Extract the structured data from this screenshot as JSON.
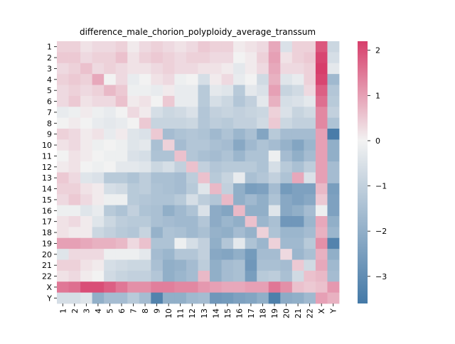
{
  "chart_data": {
    "type": "heatmap",
    "title": "difference_male_chorion_polyploidy_average_transsum",
    "xlabel": "",
    "ylabel": "",
    "row_labels": [
      "1",
      "2",
      "3",
      "4",
      "5",
      "6",
      "7",
      "8",
      "9",
      "10",
      "11",
      "12",
      "13",
      "14",
      "15",
      "16",
      "17",
      "18",
      "19",
      "20",
      "21",
      "22",
      "X",
      "Y"
    ],
    "col_labels": [
      "1",
      "2",
      "3",
      "4",
      "5",
      "6",
      "7",
      "8",
      "9",
      "10",
      "11",
      "12",
      "13",
      "14",
      "15",
      "16",
      "17",
      "18",
      "19",
      "20",
      "21",
      "22",
      "X",
      "Y"
    ],
    "colorbar": {
      "min": -3.6,
      "max": 2.2,
      "ticks": [
        -3,
        -2,
        -1,
        0,
        1,
        2
      ],
      "tick_labels": [
        "−3",
        "−2",
        "−1",
        "0",
        "1",
        "2"
      ],
      "low_color": "#4479a7",
      "mid_color": "#f2f2f2",
      "high_color": "#d73e6b"
    },
    "values": [
      [
        0.4,
        0.4,
        0.2,
        0.3,
        0.3,
        0.4,
        0.1,
        0.3,
        0.4,
        0.3,
        0.2,
        0.3,
        0.5,
        0.4,
        0.4,
        0.1,
        0.2,
        0.3,
        0.9,
        -0.5,
        0.4,
        0.4,
        1.9,
        -0.8
      ],
      [
        0.5,
        0.5,
        0.3,
        0.4,
        0.4,
        0.6,
        0.2,
        0.4,
        0.5,
        0.4,
        0.3,
        0.4,
        0.4,
        0.3,
        0.3,
        0.0,
        0.1,
        0.4,
        1.0,
        0.2,
        0.4,
        0.5,
        2.1,
        -0.6
      ],
      [
        0.3,
        0.4,
        0.6,
        0.3,
        0.4,
        0.3,
        0.2,
        0.2,
        0.3,
        0.4,
        0.3,
        0.3,
        0.2,
        0.2,
        0.1,
        -0.3,
        0.1,
        0.3,
        0.9,
        0.3,
        0.3,
        0.4,
        2.2,
        -0.3
      ],
      [
        0.4,
        0.5,
        0.4,
        0.9,
        0.0,
        0.3,
        -0.2,
        0.0,
        0.2,
        0.3,
        -0.1,
        0.0,
        -0.6,
        0.1,
        0.3,
        -0.2,
        0.0,
        -0.7,
        0.8,
        -0.4,
        -0.2,
        0.4,
        2.1,
        -1.7
      ],
      [
        0.3,
        0.4,
        0.3,
        0.4,
        0.7,
        0.5,
        -0.1,
        -0.1,
        -0.2,
        0.1,
        -0.2,
        -0.2,
        -1.2,
        -0.3,
        -0.4,
        -1.2,
        -0.3,
        -0.5,
        1.0,
        -0.9,
        -0.7,
        0.3,
        1.8,
        -1.3
      ],
      [
        0.3,
        0.5,
        0.2,
        0.3,
        0.3,
        0.6,
        0.1,
        0.2,
        0.0,
        0.5,
        -0.2,
        -0.2,
        -1.2,
        -0.6,
        -0.8,
        -1.3,
        -1.0,
        -0.3,
        0.8,
        -0.6,
        -0.5,
        -0.3,
        1.6,
        -1.2
      ],
      [
        -0.2,
        -0.1,
        0.1,
        -0.1,
        -0.2,
        0.0,
        0.3,
        0.1,
        -0.6,
        -0.8,
        -0.7,
        -0.5,
        -1.3,
        -1.0,
        -0.9,
        -1.0,
        -0.9,
        -0.8,
        0.4,
        -0.5,
        -0.9,
        -0.7,
        1.3,
        -1.0
      ],
      [
        0.0,
        0.1,
        0.0,
        -0.2,
        -0.3,
        -0.2,
        0.0,
        0.5,
        -0.9,
        -0.9,
        -0.9,
        -0.8,
        -1.3,
        -1.1,
        -1.2,
        -1.0,
        -1.0,
        -0.7,
        0.5,
        -0.8,
        -1.0,
        -1.0,
        1.3,
        -1.4
      ],
      [
        0.4,
        0.3,
        0.1,
        0.2,
        -0.2,
        0.1,
        -0.4,
        -0.5,
        0.5,
        -1.6,
        -1.4,
        -1.3,
        -1.4,
        -1.7,
        -1.4,
        -1.8,
        -1.5,
        -2.3,
        -1.2,
        -1.6,
        -1.6,
        -1.6,
        1.0,
        -3.5
      ],
      [
        0.2,
        0.3,
        0.1,
        -0.1,
        0.0,
        -0.1,
        -0.4,
        -0.3,
        -1.5,
        0.4,
        -1.6,
        -1.3,
        -1.3,
        -1.5,
        -1.6,
        -2.2,
        -1.7,
        -1.4,
        -1.6,
        -1.9,
        -2.3,
        -1.8,
        1.0,
        -2.0
      ],
      [
        0.0,
        0.2,
        0.1,
        0.0,
        -0.1,
        -0.1,
        -0.5,
        -0.6,
        -1.4,
        -1.4,
        0.6,
        -1.3,
        -1.5,
        -1.6,
        -1.4,
        -1.8,
        -1.4,
        -1.4,
        -0.1,
        -1.6,
        -2.0,
        -1.6,
        1.0,
        -2.0
      ],
      [
        0.1,
        0.2,
        0.0,
        -0.1,
        0.0,
        -0.3,
        -0.3,
        -0.4,
        -0.8,
        -0.6,
        -1.0,
        0.6,
        -1.0,
        -1.3,
        -1.2,
        -1.2,
        -1.2,
        -1.4,
        -0.6,
        -1.2,
        -1.5,
        -1.1,
        1.0,
        -1.6
      ],
      [
        0.5,
        0.3,
        -0.4,
        -0.5,
        -1.2,
        -1.2,
        -1.4,
        -1.1,
        -1.5,
        -1.5,
        -1.6,
        -1.1,
        0.6,
        -1.2,
        -0.9,
        -0.2,
        -1.5,
        -1.3,
        -1.0,
        -1.4,
        0.9,
        -0.5,
        1.0,
        -1.6
      ],
      [
        0.4,
        0.4,
        0.2,
        0.1,
        -0.6,
        -0.7,
        -1.2,
        -1.1,
        -1.4,
        -1.5,
        -1.6,
        -1.2,
        -0.4,
        0.7,
        -1.0,
        -2.0,
        -2.5,
        -2.4,
        -1.6,
        -2.6,
        -2.4,
        -2.4,
        0.7,
        -2.5
      ],
      [
        0.3,
        0.5,
        0.3,
        0.1,
        -0.1,
        -0.1,
        -1.2,
        -1.3,
        -1.4,
        -1.4,
        -1.2,
        -0.6,
        -1.1,
        -1.3,
        0.7,
        -2.0,
        -1.7,
        -2.0,
        -1.4,
        -2.2,
        -2.4,
        -2.2,
        0.5,
        -2.4
      ],
      [
        -0.1,
        -0.1,
        -0.4,
        -0.2,
        -1.2,
        -1.4,
        -1.0,
        -1.4,
        -1.5,
        -2.0,
        -1.7,
        -1.4,
        -0.5,
        -2.1,
        -2.3,
        0.7,
        -2.0,
        -2.0,
        -0.4,
        -2.2,
        -2.0,
        -1.6,
        -0.1,
        -2.4
      ],
      [
        0.2,
        0.3,
        0.1,
        -0.4,
        -0.8,
        -1.1,
        -1.2,
        -1.2,
        -1.5,
        -1.6,
        -1.7,
        -1.7,
        -1.3,
        -2.1,
        -1.8,
        -2.0,
        0.6,
        -1.8,
        -1.5,
        -2.7,
        -2.7,
        -1.8,
        0.9,
        -2.0
      ],
      [
        0.2,
        0.1,
        0.1,
        -0.8,
        -1.0,
        -1.2,
        -1.3,
        -0.9,
        -1.9,
        -1.4,
        -1.5,
        -1.7,
        -1.5,
        -1.9,
        -2.0,
        -1.6,
        -1.9,
        0.4,
        -1.4,
        -1.8,
        -1.8,
        -1.6,
        0.8,
        -1.8
      ],
      [
        1.0,
        1.0,
        0.9,
        0.8,
        0.8,
        0.7,
        0.3,
        0.6,
        -1.4,
        -1.4,
        -0.1,
        -0.6,
        -1.0,
        -2.0,
        -1.3,
        -0.3,
        -1.4,
        -1.8,
        0.4,
        -1.7,
        -1.7,
        -1.2,
        1.2,
        -3.3
      ],
      [
        -0.4,
        0.3,
        0.3,
        0.3,
        -0.1,
        -0.1,
        -0.1,
        -0.3,
        -1.6,
        -1.8,
        -1.3,
        -1.3,
        -1.0,
        -2.2,
        -2.3,
        -2.0,
        -2.6,
        -1.6,
        -1.6,
        0.3,
        -1.8,
        -1.5,
        0.8,
        -2.0
      ],
      [
        0.4,
        0.4,
        0.2,
        0.1,
        -0.6,
        -0.7,
        -0.8,
        -0.8,
        -1.5,
        -2.0,
        -1.9,
        -1.6,
        -1.1,
        -2.0,
        -1.6,
        -1.5,
        -2.7,
        -1.5,
        -1.5,
        -1.6,
        0.5,
        -0.7,
        0.9,
        -1.7
      ],
      [
        0.2,
        0.3,
        0.1,
        0.0,
        -0.7,
        -0.9,
        -1.0,
        -1.0,
        -1.3,
        -2.0,
        -1.8,
        -1.6,
        0.7,
        -2.0,
        -1.6,
        -1.5,
        -2.5,
        -1.2,
        -1.1,
        -1.5,
        -0.7,
        0.6,
        0.7,
        -1.6
      ],
      [
        1.5,
        1.6,
        2.0,
        2.0,
        1.8,
        1.5,
        1.2,
        1.2,
        1.4,
        1.4,
        1.3,
        1.3,
        1.1,
        1.0,
        0.9,
        0.9,
        1.0,
        1.0,
        1.5,
        1.2,
        0.6,
        0.5,
        0.6,
        1.1
      ],
      [
        -0.6,
        -0.6,
        -0.4,
        -2.0,
        -1.6,
        -1.6,
        -1.2,
        -1.6,
        -3.3,
        -2.0,
        -2.0,
        -1.7,
        -1.6,
        -2.7,
        -2.6,
        -2.4,
        -2.3,
        -2.0,
        -3.4,
        -2.1,
        -2.0,
        -1.7,
        1.0,
        0.8
      ]
    ]
  }
}
